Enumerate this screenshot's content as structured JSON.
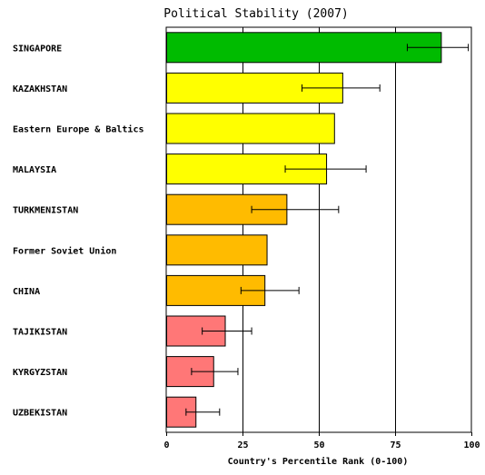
{
  "chart_data": {
    "type": "bar",
    "orientation": "horizontal",
    "title": "Political Stability (2007)",
    "xlabel": "Country's Percentile Rank (0-100)",
    "xlim": [
      0,
      100
    ],
    "xticks": [
      "0",
      "25",
      "50",
      "75",
      "100"
    ],
    "grid": true,
    "categories": [
      "SINGAPORE",
      "KAZAKHSTAN",
      "Eastern Europe & Baltics",
      "MALAYSIA",
      "TURKMENISTAN",
      "Former Soviet Union",
      "CHINA",
      "TAJIKISTAN",
      "KYRGYZSTAN",
      "UZBEKISTAN"
    ],
    "values": [
      90,
      57.7,
      55,
      52.4,
      39.4,
      32.9,
      32.2,
      19.2,
      15.4,
      9.6
    ],
    "error_low": [
      79,
      44.5,
      null,
      39,
      28,
      null,
      24.5,
      11.8,
      8.3,
      6.5
    ],
    "error_high": [
      99,
      70,
      null,
      65.5,
      56.5,
      null,
      43.5,
      28,
      23.5,
      17.5
    ],
    "colors": [
      "#00bb00",
      "#ffff00",
      "#ffff00",
      "#ffff00",
      "#ffbb00",
      "#ffbb00",
      "#ffbb00",
      "#ff7777",
      "#ff7777",
      "#ff7777"
    ]
  }
}
